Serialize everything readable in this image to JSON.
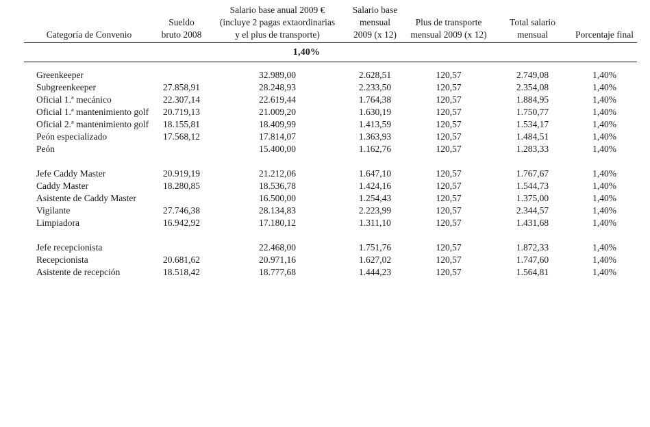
{
  "colors": {
    "background": "#ffffff",
    "text": "#1a1a1a",
    "rule": "#000000"
  },
  "table": {
    "columns": [
      {
        "label": "Categoría de Convenio"
      },
      {
        "label": "Sueldo\nbruto 2008"
      },
      {
        "label": "Salario base anual 2009 €\n(incluye 2 pagas extaordinarias\ny el plus de transporte)"
      },
      {
        "label": "Salario base\nmensual\n2009 (x 12)"
      },
      {
        "label": "Plus de transporte\nmensual 2009 (x 12)"
      },
      {
        "label": "Total salario\nmensual"
      },
      {
        "label": "Porcentaje final"
      }
    ],
    "subheader_percentage": "1,40%",
    "groups": [
      {
        "rows": [
          [
            "Greenkeeper",
            "",
            "32.989,00",
            "2.628,51",
            "120,57",
            "2.749,08",
            "1,40%"
          ],
          [
            "Subgreenkeeper",
            "27.858,91",
            "28.248,93",
            "2.233,50",
            "120,57",
            "2.354,08",
            "1,40%"
          ],
          [
            "Oficial 1.ª mecánico",
            "22.307,14",
            "22.619,44",
            "1.764,38",
            "120,57",
            "1.884,95",
            "1,40%"
          ],
          [
            "Oficial 1.ª mantenimiento golf",
            "20.719,13",
            "21.009,20",
            "1.630,19",
            "120,57",
            "1.750,77",
            "1,40%"
          ],
          [
            "Oficial 2.ª mantenimiento golf",
            "18.155,81",
            "18.409,99",
            "1.413,59",
            "120,57",
            "1.534,17",
            "1,40%"
          ],
          [
            "Peón especializado",
            "17.568,12",
            "17.814,07",
            "1.363,93",
            "120,57",
            "1.484,51",
            "1,40%"
          ],
          [
            "Peón",
            "",
            "15.400,00",
            "1.162,76",
            "120,57",
            "1.283,33",
            "1,40%"
          ]
        ]
      },
      {
        "rows": [
          [
            "Jefe Caddy Master",
            "20.919,19",
            "21.212,06",
            "1.647,10",
            "120,57",
            "1.767,67",
            "1,40%"
          ],
          [
            "Caddy Master",
            "18.280,85",
            "18.536,78",
            "1.424,16",
            "120,57",
            "1.544,73",
            "1,40%"
          ],
          [
            "Asistente de Caddy Master",
            "",
            "16.500,00",
            "1.254,43",
            "120,57",
            "1.375,00",
            "1,40%"
          ],
          [
            "Vigilante",
            "27.746,38",
            "28.134,83",
            "2.223,99",
            "120,57",
            "2.344,57",
            "1,40%"
          ],
          [
            "Limpiadora",
            "16.942,92",
            "17.180,12",
            "1.311,10",
            "120,57",
            "1.431,68",
            "1,40%"
          ]
        ]
      },
      {
        "rows": [
          [
            "Jefe recepcionista",
            "",
            "22.468,00",
            "1.751,76",
            "120,57",
            "1.872,33",
            "1,40%"
          ],
          [
            "Recepcionista",
            "20.681,62",
            "20.971,16",
            "1.627,02",
            "120,57",
            "1.747,60",
            "1,40%"
          ],
          [
            "Asistente de recepción",
            "18.518,42",
            "18.777,68",
            "1.444,23",
            "120,57",
            "1.564,81",
            "1,40%"
          ]
        ]
      }
    ]
  }
}
